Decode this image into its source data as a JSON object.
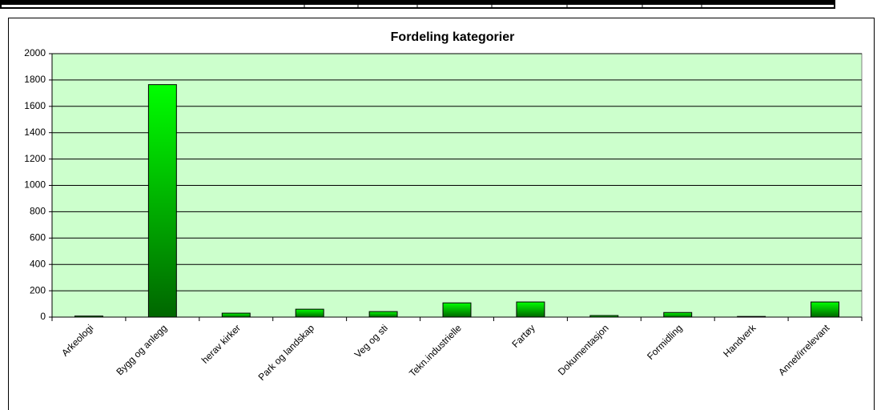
{
  "chart_data": {
    "type": "bar",
    "title": "Fordeling kategorier",
    "categories": [
      "Arkeologi",
      "Bygg og anlegg",
      "herav kirker",
      "Park og landskap",
      "Veg og sti",
      "Tekn.industrielle",
      "Fartøy",
      "Dokumentasjon",
      "Formidling",
      "Handverk",
      "Annet/irrelevant"
    ],
    "values": [
      8,
      1765,
      30,
      60,
      42,
      108,
      115,
      12,
      35,
      5,
      115
    ],
    "color": "#00ee00",
    "ylim": [
      0,
      2000
    ],
    "yticks": [
      0,
      200,
      400,
      600,
      800,
      1000,
      1200,
      1400,
      1600,
      1800,
      2000
    ],
    "grid": true
  }
}
